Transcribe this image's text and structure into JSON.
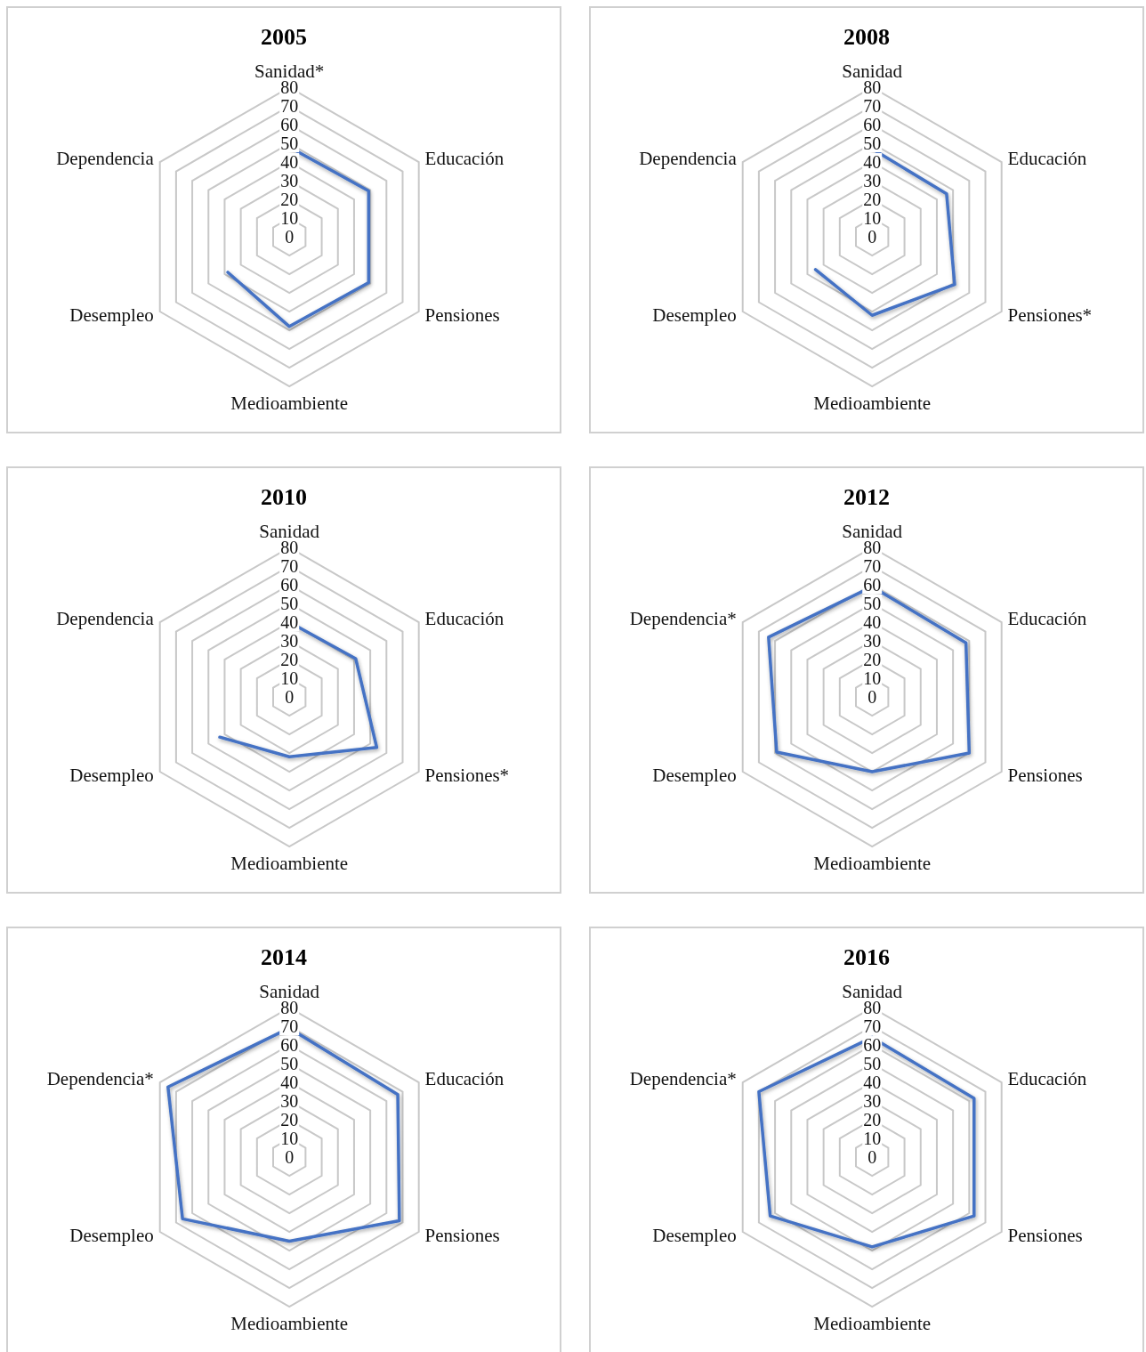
{
  "chart_data": [
    {
      "type": "radar",
      "title": "2005",
      "categories": [
        "Sanidad*",
        "Educación",
        "Pensiones",
        "Medioambiente",
        "Desempleo",
        "Dependencia"
      ],
      "ylim": [
        0,
        80
      ],
      "yticks": [
        0,
        10,
        20,
        30,
        40,
        50,
        60,
        70,
        80
      ],
      "grid": true,
      "series": [
        {
          "color": "#4472c4",
          "values": [
            48,
            49,
            49,
            48,
            38,
            null
          ]
        }
      ]
    },
    {
      "type": "radar",
      "title": "2008",
      "categories": [
        "Sanidad",
        "Educación",
        "Pensiones*",
        "Medioambiente",
        "Desempleo",
        "Dependencia"
      ],
      "ylim": [
        0,
        80
      ],
      "yticks": [
        0,
        10,
        20,
        30,
        40,
        50,
        60,
        70,
        80
      ],
      "grid": true,
      "series": [
        {
          "color": "#4472c4",
          "values": [
            47,
            46,
            51,
            42,
            35,
            null
          ]
        }
      ]
    },
    {
      "type": "radar",
      "title": "2010",
      "categories": [
        "Sanidad",
        "Educación",
        "Pensiones*",
        "Medioambiente",
        "Desempleo",
        "Dependencia"
      ],
      "ylim": [
        0,
        80
      ],
      "yticks": [
        0,
        10,
        20,
        30,
        40,
        50,
        60,
        70,
        80
      ],
      "grid": true,
      "series": [
        {
          "color": "#4472c4",
          "values": [
            40,
            41,
            54,
            32,
            43,
            null
          ]
        }
      ]
    },
    {
      "type": "radar",
      "title": "2012",
      "categories": [
        "Sanidad",
        "Educación",
        "Pensiones",
        "Medioambiente",
        "Desempleo",
        "Dependencia*"
      ],
      "ylim": [
        0,
        80
      ],
      "yticks": [
        0,
        10,
        20,
        30,
        40,
        50,
        60,
        70,
        80
      ],
      "grid": true,
      "series": [
        {
          "color": "#4472c4",
          "values": [
            59,
            58,
            60,
            40,
            59,
            64
          ]
        }
      ]
    },
    {
      "type": "radar",
      "title": "2014",
      "categories": [
        "Sanidad",
        "Educación",
        "Pensiones",
        "Medioambiente",
        "Desempleo",
        "Dependencia*"
      ],
      "ylim": [
        0,
        80
      ],
      "yticks": [
        0,
        10,
        20,
        30,
        40,
        50,
        60,
        70,
        80
      ],
      "grid": true,
      "series": [
        {
          "color": "#4472c4",
          "values": [
            69,
            67,
            68,
            45,
            66,
            75
          ]
        }
      ]
    },
    {
      "type": "radar",
      "title": "2016",
      "categories": [
        "Sanidad",
        "Educación",
        "Pensiones",
        "Medioambiente",
        "Desempleo",
        "Dependencia*"
      ],
      "ylim": [
        0,
        80
      ],
      "yticks": [
        0,
        10,
        20,
        30,
        40,
        50,
        60,
        70,
        80
      ],
      "grid": true,
      "series": [
        {
          "color": "#4472c4",
          "values": [
            64,
            63,
            63,
            48,
            63,
            70
          ]
        }
      ]
    }
  ]
}
